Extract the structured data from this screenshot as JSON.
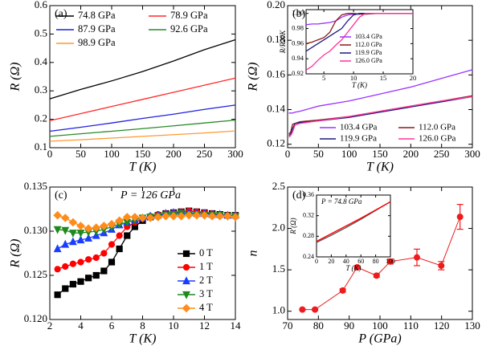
{
  "chart_data": [
    {
      "type": "line",
      "panel_label": "(a)",
      "x_label": "T (K)",
      "y_label": "R (Ω)",
      "x": [
        0,
        50,
        100,
        150,
        200,
        250,
        300
      ],
      "xlim": [
        0,
        300
      ],
      "xticks": [
        0,
        50,
        100,
        150,
        200,
        250,
        300
      ],
      "ylim": [
        0.1,
        0.6
      ],
      "yticks": [
        0.1,
        0.2,
        0.3,
        0.4,
        0.5,
        0.6
      ],
      "legend": "upper left",
      "series": [
        {
          "name": "74.8  GPa",
          "color": "#000000",
          "values": [
            0.272,
            0.305,
            0.335,
            0.368,
            0.405,
            0.445,
            0.48
          ]
        },
        {
          "name": "78.9  GPa",
          "color": "#ff2a2a",
          "values": [
            0.195,
            0.22,
            0.245,
            0.27,
            0.295,
            0.32,
            0.345
          ]
        },
        {
          "name": "87.9  GPa",
          "color": "#2020e0",
          "values": [
            0.158,
            0.172,
            0.187,
            0.203,
            0.218,
            0.235,
            0.25
          ]
        },
        {
          "name": "92.6  GPa",
          "color": "#2a8a2a",
          "values": [
            0.14,
            0.149,
            0.158,
            0.167,
            0.177,
            0.187,
            0.197
          ]
        },
        {
          "name": "98.9  GPa",
          "color": "#ff9933",
          "values": [
            0.123,
            0.128,
            0.134,
            0.14,
            0.146,
            0.152,
            0.159
          ]
        }
      ]
    },
    {
      "type": "line",
      "panel_label": "(b)",
      "x_label": "T (K)",
      "y_label": "R (Ω)",
      "x": [
        2,
        5,
        8,
        12,
        20,
        50,
        100,
        150,
        200,
        250,
        300
      ],
      "xlim": [
        0,
        300
      ],
      "xticks": [
        0,
        50,
        100,
        150,
        200,
        250,
        300
      ],
      "ylim": [
        0.118,
        0.2
      ],
      "yticks": [
        0.12,
        0.14,
        0.16,
        0.18,
        {
          "value": 0.2,
          "label": "0.20"
        }
      ],
      "legend": "lower right",
      "series": [
        {
          "name": "103.4 GPa",
          "color": "#9933ff",
          "values": [
            0.138,
            0.138,
            0.138,
            0.1385,
            0.139,
            0.142,
            0.145,
            0.149,
            0.153,
            0.158,
            0.163
          ]
        },
        {
          "name": "112.0 GPa",
          "color": "#8b1a1a",
          "values": [
            0.126,
            0.127,
            0.1315,
            0.132,
            0.133,
            0.134,
            0.136,
            0.139,
            0.142,
            0.145,
            0.148
          ]
        },
        {
          "name": "119.9 GPa",
          "color": "#1a1a80",
          "values": [
            0.125,
            0.126,
            0.129,
            0.132,
            0.1325,
            0.1335,
            0.1355,
            0.1385,
            0.1415,
            0.1445,
            0.1475
          ]
        },
        {
          "name": "126.0 GPa",
          "color": "#ff3399",
          "values": [
            0.124,
            0.125,
            0.127,
            0.131,
            0.132,
            0.1335,
            0.136,
            0.139,
            0.142,
            0.145,
            0.1475
          ]
        }
      ]
    },
    {
      "type": "line",
      "x_label": "T (K)",
      "y_label": "R/R20K",
      "x": [
        2,
        3,
        4,
        5,
        6,
        7,
        8,
        9,
        10,
        11,
        12,
        14,
        16,
        18,
        20
      ],
      "xlim": [
        2,
        20
      ],
      "xticks": [
        5,
        10,
        15,
        20
      ],
      "ylim": [
        0.92,
        1.005
      ],
      "yticks": [
        0.92,
        0.94,
        0.96,
        0.98,
        {
          "value": 1.0,
          "label": "1.00"
        }
      ],
      "legend": "inset right",
      "series": [
        {
          "name": "103.4 GPa",
          "color": "#9933ff",
          "values": [
            0.985,
            0.986,
            0.986,
            0.987,
            0.988,
            0.99,
            0.995,
            0.998,
            0.999,
            0.999,
            1.0,
            1.0,
            1.0,
            1.0,
            1.0
          ]
        },
        {
          "name": "112.0 GPa",
          "color": "#8b1a1a",
          "values": [
            0.96,
            0.962,
            0.965,
            0.968,
            0.975,
            0.99,
            0.998,
            1.0,
            1.0,
            0.999,
            0.999,
            1.0,
            1.0,
            1.0,
            1.0
          ]
        },
        {
          "name": "119.9 GPa",
          "color": "#1a1a80",
          "values": [
            0.95,
            0.955,
            0.96,
            0.965,
            0.97,
            0.975,
            0.98,
            0.99,
            0.998,
            1.0,
            1.0,
            1.0,
            1.0,
            1.0,
            1.0
          ]
        },
        {
          "name": "126.0 GPa",
          "color": "#ff3399",
          "values": [
            0.925,
            0.93,
            0.938,
            0.945,
            0.95,
            0.958,
            0.965,
            0.975,
            0.985,
            0.995,
            1.0,
            1.0,
            1.0,
            1.0,
            1.0
          ]
        }
      ]
    },
    {
      "type": "line",
      "panel_label": "(c)",
      "annotation": "P = 126 GPa",
      "x_label": "T (K)",
      "y_label": "R (Ω)",
      "x": [
        2.5,
        3,
        3.5,
        4,
        4.5,
        5,
        5.5,
        6,
        6.5,
        7,
        7.5,
        8,
        8.5,
        9,
        9.5,
        10,
        10.5,
        11,
        11.5,
        12,
        12.5,
        13,
        13.5,
        14
      ],
      "xlim": [
        2,
        14
      ],
      "xticks": [
        2,
        4,
        6,
        8,
        10,
        12,
        14
      ],
      "ylim": [
        0.12,
        0.135
      ],
      "yticks": [
        {
          "value": 0.12,
          "label": "0.120"
        },
        {
          "value": 0.125,
          "label": "0.125"
        },
        {
          "value": 0.13,
          "label": "0.130"
        },
        {
          "value": 0.135,
          "label": "0.135"
        }
      ],
      "legend": "center right",
      "series": [
        {
          "name": "0 T",
          "color": "#000000",
          "marker": "square",
          "values": [
            0.1228,
            0.1235,
            0.124,
            0.1243,
            0.1247,
            0.125,
            0.1255,
            0.1265,
            0.128,
            0.1295,
            0.1305,
            0.1312,
            0.1316,
            0.1318,
            0.132,
            0.1321,
            0.1322,
            0.1323,
            0.1322,
            0.1321,
            0.132,
            0.1319,
            0.1318,
            0.1318
          ]
        },
        {
          "name": "1 T",
          "color": "#ff0000",
          "marker": "circle",
          "values": [
            0.1257,
            0.126,
            0.1263,
            0.1265,
            0.1268,
            0.127,
            0.1275,
            0.1285,
            0.1295,
            0.1305,
            0.131,
            0.1314,
            0.1317,
            0.1319,
            0.132,
            0.1321,
            0.1322,
            0.1323,
            0.1322,
            0.1321,
            0.132,
            0.1319,
            0.1318,
            0.1318
          ]
        },
        {
          "name": "2 T",
          "color": "#1a3cff",
          "marker": "triangle-up",
          "values": [
            0.128,
            0.1285,
            0.1288,
            0.129,
            0.1292,
            0.1295,
            0.1298,
            0.1302,
            0.1307,
            0.131,
            0.1313,
            0.1315,
            0.1317,
            0.1318,
            0.132,
            0.1321,
            0.1321,
            0.1321,
            0.132,
            0.132,
            0.1319,
            0.1319,
            0.1318,
            0.1318
          ]
        },
        {
          "name": "3 T",
          "color": "#1e8a1e",
          "marker": "triangle-down",
          "values": [
            0.1302,
            0.1301,
            0.1298,
            0.1298,
            0.1299,
            0.13,
            0.1302,
            0.1305,
            0.1308,
            0.131,
            0.1313,
            0.1315,
            0.1316,
            0.1317,
            0.1318,
            0.1319,
            0.132,
            0.1319,
            0.1319,
            0.1318,
            0.1318,
            0.1318,
            0.1317,
            0.1317
          ]
        },
        {
          "name": "4 T",
          "color": "#ff8c1a",
          "marker": "diamond",
          "values": [
            0.1318,
            0.1315,
            0.131,
            0.1306,
            0.1303,
            0.1304,
            0.1306,
            0.1308,
            0.1312,
            0.1316,
            0.1316,
            0.1315,
            0.1315,
            0.1316,
            0.1317,
            0.1317,
            0.1317,
            0.1318,
            0.1318,
            0.1318,
            0.1317,
            0.1317,
            0.1317,
            0.1316
          ]
        }
      ]
    },
    {
      "type": "scatter",
      "panel_label": "(d)",
      "x_label": "P (GPa)",
      "y_label": "n",
      "x": [
        74.8,
        78.9,
        87.9,
        92.6,
        98.9,
        103.4,
        112.0,
        119.9,
        126.0
      ],
      "xlim": [
        70,
        130
      ],
      "xticks": [
        70,
        80,
        90,
        100,
        110,
        120,
        130
      ],
      "ylim": [
        0.9,
        2.5
      ],
      "yticks": [
        {
          "value": 1.0,
          "label": "1.0"
        },
        1.5,
        {
          "value": 2.0,
          "label": "2.0"
        },
        2.5
      ],
      "series": [
        {
          "color": "#ee1c1c",
          "values": [
            1.02,
            1.02,
            1.25,
            1.53,
            1.43,
            1.6,
            1.65,
            1.55,
            2.14
          ],
          "errors": [
            0.01,
            0.01,
            0.02,
            0.02,
            0.02,
            0.03,
            0.1,
            0.05,
            0.15
          ]
        }
      ]
    },
    {
      "type": "line",
      "annotation": "P = 74.8 GPa",
      "x_label": "T (K)",
      "y_label": "R (Ω)",
      "x": [
        0,
        20,
        40,
        60,
        80,
        100
      ],
      "xlim": [
        0,
        100
      ],
      "xticks": [
        0,
        20,
        40,
        60,
        80,
        100
      ],
      "ylim": [
        0.24,
        0.36
      ],
      "yticks": [
        0.24,
        0.28,
        0.32,
        0.36
      ],
      "series": [
        {
          "color": "#555555",
          "values": [
            0.268,
            0.282,
            0.297,
            0.313,
            0.33,
            0.347
          ]
        },
        {
          "color": "#ff0000",
          "values": [
            0.27,
            0.285,
            0.3,
            0.315,
            0.331,
            0.347
          ]
        }
      ]
    }
  ]
}
